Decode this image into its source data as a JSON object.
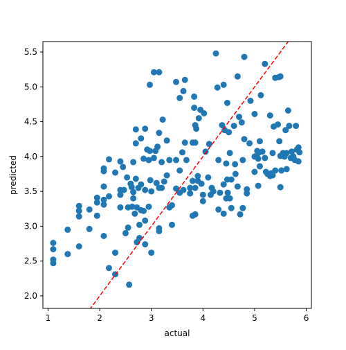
{
  "chart_data": {
    "type": "scatter",
    "xlabel": "actual",
    "ylabel": "predicted",
    "xlim": [
      0.9,
      6.1
    ],
    "ylim": [
      1.82,
      5.65
    ],
    "xticks": [
      1,
      2,
      3,
      4,
      5,
      6
    ],
    "xtick_labels": [
      "1",
      "2",
      "3",
      "4",
      "5",
      "6"
    ],
    "yticks": [
      2.0,
      2.5,
      3.0,
      3.5,
      4.0,
      4.5,
      5.0,
      5.5
    ],
    "ytick_labels": [
      "2.0",
      "2.5",
      "3.0",
      "3.5",
      "4.0",
      "4.5",
      "5.0",
      "5.5"
    ],
    "grid": false,
    "point_color": "#1f77b4",
    "reference_line": {
      "style": "dashed",
      "color": "#ff0000",
      "x": [
        1.8,
        5.65
      ],
      "y": [
        1.8,
        5.65
      ]
    },
    "points": [
      [
        1.1,
        2.76
      ],
      [
        1.1,
        2.67
      ],
      [
        1.1,
        2.52
      ],
      [
        1.1,
        2.47
      ],
      [
        1.38,
        2.95
      ],
      [
        1.38,
        2.6
      ],
      [
        1.6,
        3.29
      ],
      [
        1.6,
        3.22
      ],
      [
        1.6,
        3.14
      ],
      [
        1.6,
        2.71
      ],
      [
        1.8,
        3.24
      ],
      [
        1.8,
        2.96
      ],
      [
        1.95,
        3.41
      ],
      [
        1.95,
        3.34
      ],
      [
        1.95,
        3.15
      ],
      [
        2.08,
        3.83
      ],
      [
        2.08,
        3.79
      ],
      [
        2.08,
        3.57
      ],
      [
        2.08,
        3.38
      ],
      [
        2.08,
        3.31
      ],
      [
        2.08,
        2.86
      ],
      [
        2.18,
        3.96
      ],
      [
        2.18,
        3.43
      ],
      [
        2.18,
        2.4
      ],
      [
        2.3,
        3.77
      ],
      [
        2.3,
        2.62
      ],
      [
        2.3,
        2.31
      ],
      [
        2.4,
        3.93
      ],
      [
        2.4,
        3.52
      ],
      [
        2.4,
        3.45
      ],
      [
        2.4,
        3.27
      ],
      [
        2.45,
        3.85
      ],
      [
        2.47,
        3.52
      ],
      [
        2.5,
        2.9
      ],
      [
        2.53,
        3.7
      ],
      [
        2.55,
        3.27
      ],
      [
        2.55,
        2.98
      ],
      [
        2.57,
        2.16
      ],
      [
        2.6,
        3.61
      ],
      [
        2.62,
        3.56
      ],
      [
        2.63,
        3.28
      ],
      [
        2.65,
        3.92
      ],
      [
        2.65,
        3.49
      ],
      [
        2.65,
        3.4
      ],
      [
        2.68,
        3.18
      ],
      [
        2.7,
        4.39
      ],
      [
        2.7,
        4.19
      ],
      [
        2.7,
        3.68
      ],
      [
        2.72,
        3.27
      ],
      [
        2.72,
        2.77
      ],
      [
        2.75,
        3.55
      ],
      [
        2.77,
        3.02
      ],
      [
        2.77,
        2.83
      ],
      [
        2.8,
        4.26
      ],
      [
        2.8,
        3.6
      ],
      [
        2.8,
        3.23
      ],
      [
        2.85,
        3.97
      ],
      [
        2.85,
        3.22
      ],
      [
        2.88,
        4.4
      ],
      [
        2.88,
        3.52
      ],
      [
        2.88,
        3.08
      ],
      [
        2.88,
        2.74
      ],
      [
        2.92,
        4.1
      ],
      [
        2.95,
        3.95
      ],
      [
        2.95,
        3.28
      ],
      [
        2.97,
        5.03
      ],
      [
        2.97,
        4.08
      ],
      [
        2.98,
        3.66
      ],
      [
        3.0,
        3.5
      ],
      [
        3.0,
        2.62
      ],
      [
        3.05,
        5.21
      ],
      [
        3.05,
        3.98
      ],
      [
        3.08,
        4.08
      ],
      [
        3.1,
        3.62
      ],
      [
        3.12,
        4.14
      ],
      [
        3.15,
        5.21
      ],
      [
        3.15,
        4.34
      ],
      [
        3.15,
        3.55
      ],
      [
        3.15,
        2.97
      ],
      [
        3.15,
        2.93
      ],
      [
        3.2,
        3.92
      ],
      [
        3.2,
        3.55
      ],
      [
        3.22,
        4.53
      ],
      [
        3.25,
        3.64
      ],
      [
        3.3,
        4.23
      ],
      [
        3.3,
        3.73
      ],
      [
        3.35,
        3.95
      ],
      [
        3.35,
        3.27
      ],
      [
        3.4,
        3.3
      ],
      [
        3.4,
        3.02
      ],
      [
        3.48,
        5.07
      ],
      [
        3.48,
        3.95
      ],
      [
        3.48,
        3.54
      ],
      [
        3.55,
        4.84
      ],
      [
        3.55,
        3.8
      ],
      [
        3.55,
        3.48
      ],
      [
        3.6,
        4.06
      ],
      [
        3.62,
        4.94
      ],
      [
        3.62,
        3.52
      ],
      [
        3.65,
        5.1
      ],
      [
        3.65,
        4.2
      ],
      [
        3.68,
        3.95
      ],
      [
        3.75,
        3.55
      ],
      [
        3.75,
        3.47
      ],
      [
        3.8,
        4.2
      ],
      [
        3.8,
        3.65
      ],
      [
        3.8,
        3.15
      ],
      [
        3.83,
        4.86
      ],
      [
        3.83,
        4.7
      ],
      [
        3.85,
        4.45
      ],
      [
        3.85,
        4.2
      ],
      [
        3.85,
        3.55
      ],
      [
        3.85,
        3.17
      ],
      [
        3.87,
        4.4
      ],
      [
        3.9,
        3.72
      ],
      [
        3.9,
        3.65
      ],
      [
        3.92,
        4.55
      ],
      [
        3.95,
        4.67
      ],
      [
        3.97,
        3.61
      ],
      [
        4.0,
        3.45
      ],
      [
        4.0,
        3.36
      ],
      [
        4.02,
        4.62
      ],
      [
        4.05,
        4.07
      ],
      [
        4.1,
        3.7
      ],
      [
        4.12,
        4.18
      ],
      [
        4.15,
        3.45
      ],
      [
        4.17,
        3.55
      ],
      [
        4.2,
        3.5
      ],
      [
        4.25,
        5.48
      ],
      [
        4.28,
        4.99
      ],
      [
        4.3,
        3.95
      ],
      [
        4.3,
        3.24
      ],
      [
        4.33,
        3.48
      ],
      [
        4.37,
        4.45
      ],
      [
        4.4,
        5.03
      ],
      [
        4.4,
        3.6
      ],
      [
        4.4,
        3.18
      ],
      [
        4.42,
        4.38
      ],
      [
        4.45,
        3.9
      ],
      [
        4.45,
        3.4
      ],
      [
        4.47,
        4.77
      ],
      [
        4.47,
        3.67
      ],
      [
        4.48,
        3.48
      ],
      [
        4.5,
        4.35
      ],
      [
        4.52,
        4.05
      ],
      [
        4.52,
        3.4
      ],
      [
        4.55,
        3.67
      ],
      [
        4.55,
        3.26
      ],
      [
        4.6,
        4.44
      ],
      [
        4.62,
        3.89
      ],
      [
        4.63,
        3.75
      ],
      [
        4.67,
        5.15
      ],
      [
        4.67,
        3.57
      ],
      [
        4.7,
        4.57
      ],
      [
        4.72,
        3.17
      ],
      [
        4.75,
        4.49
      ],
      [
        4.77,
        3.95
      ],
      [
        4.77,
        3.26
      ],
      [
        4.8,
        5.43
      ],
      [
        4.8,
        4.25
      ],
      [
        4.85,
        3.47
      ],
      [
        4.85,
        3.53
      ],
      [
        4.9,
        4.19
      ],
      [
        4.92,
        4.8
      ],
      [
        5.0,
        4.61
      ],
      [
        5.0,
        4.0
      ],
      [
        5.0,
        3.78
      ],
      [
        5.05,
        4.08
      ],
      [
        5.07,
        4.05
      ],
      [
        5.07,
        3.97
      ],
      [
        5.07,
        3.58
      ],
      [
        5.1,
        4.22
      ],
      [
        5.1,
        3.86
      ],
      [
        5.12,
        4.88
      ],
      [
        5.15,
        4.07
      ],
      [
        5.2,
        5.33
      ],
      [
        5.2,
        3.98
      ],
      [
        5.22,
        3.78
      ],
      [
        5.25,
        3.75
      ],
      [
        5.3,
        4.59
      ],
      [
        5.3,
        3.72
      ],
      [
        5.32,
        3.76
      ],
      [
        5.35,
        4.05
      ],
      [
        5.35,
        3.73
      ],
      [
        5.37,
        4.43
      ],
      [
        5.4,
        5.13
      ],
      [
        5.4,
        3.8
      ],
      [
        5.45,
        4.46
      ],
      [
        5.47,
        5.14
      ],
      [
        5.48,
        4.22
      ],
      [
        5.5,
        5.15
      ],
      [
        5.5,
        4.01
      ],
      [
        5.5,
        3.56
      ],
      [
        5.52,
        3.8
      ],
      [
        5.55,
        4.05
      ],
      [
        5.58,
        4.0
      ],
      [
        5.6,
        4.38
      ],
      [
        5.62,
        4.05
      ],
      [
        5.62,
        3.82
      ],
      [
        5.65,
        4.66
      ],
      [
        5.67,
        4.44
      ],
      [
        5.7,
        3.98
      ],
      [
        5.72,
        4.07
      ],
      [
        5.75,
        4.0
      ],
      [
        5.78,
        3.95
      ],
      [
        5.8,
        4.44
      ],
      [
        5.82,
        4.1
      ],
      [
        5.85,
        4.13
      ],
      [
        5.85,
        3.93
      ],
      [
        5.87,
        4.06
      ]
    ]
  }
}
